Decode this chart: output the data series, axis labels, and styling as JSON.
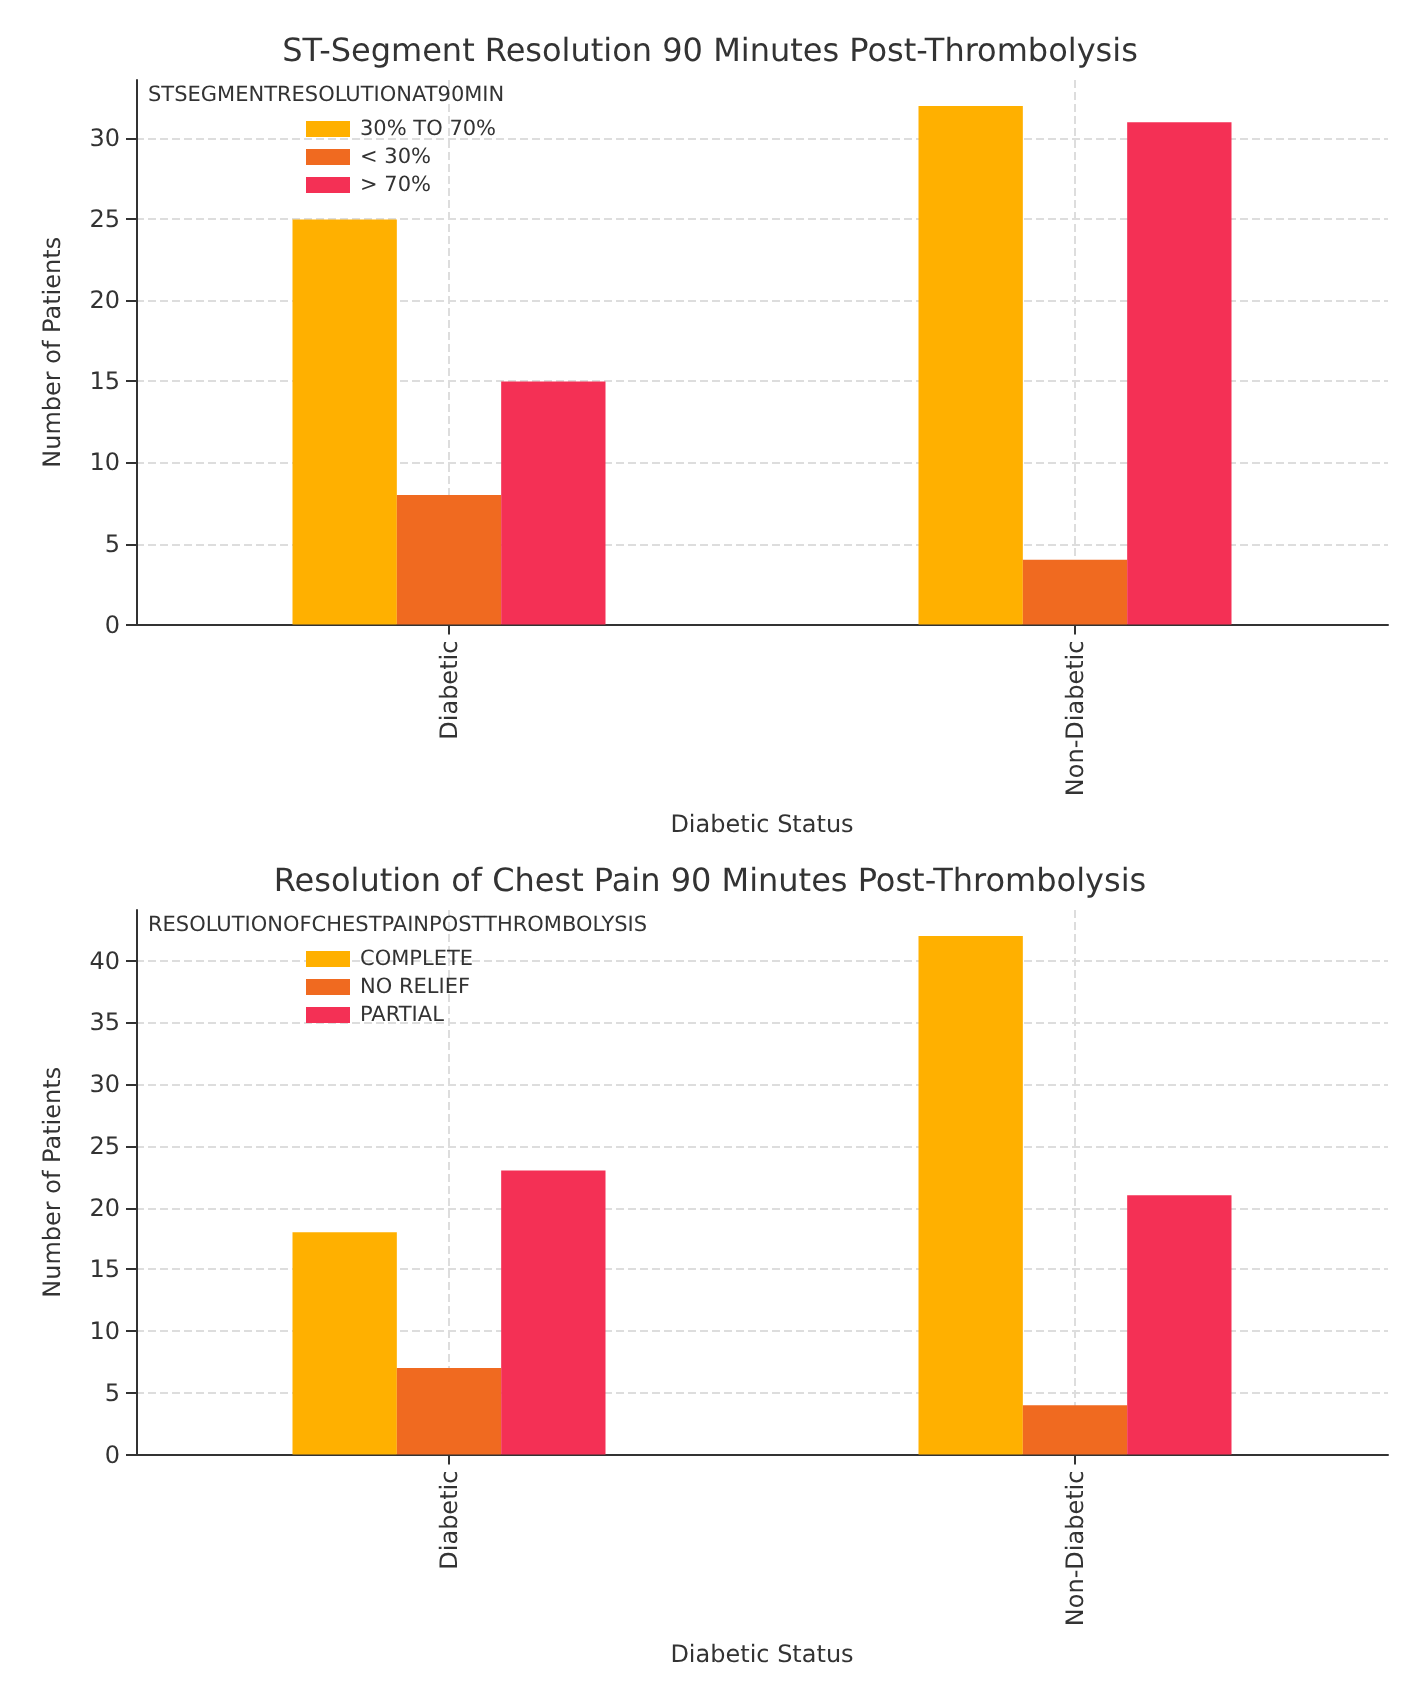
{
  "chart_data": [
    {
      "type": "bar",
      "title": "ST-Segment Resolution 90 Minutes Post-Thrombolysis",
      "xlabel": "Diabetic Status",
      "ylabel": "Number of Patients",
      "legend_title": "STSEGMENTRESOLUTIONAT90MIN",
      "categories": [
        "Diabetic",
        "Non-Diabetic"
      ],
      "series": [
        {
          "name": "30% TO 70%",
          "color": "#ffb000",
          "values": [
            25,
            32
          ]
        },
        {
          "name": "< 30%",
          "color": "#f06a20",
          "values": [
            8,
            4
          ]
        },
        {
          "name": "> 70%",
          "color": "#f43055",
          "values": [
            15,
            31
          ]
        }
      ],
      "ylim": [
        0,
        33.6
      ],
      "yticks": [
        0,
        5,
        10,
        15,
        20,
        25,
        30
      ],
      "grid": true,
      "legend": "top left"
    },
    {
      "type": "bar",
      "title": "Resolution of Chest Pain 90 Minutes Post-Thrombolysis",
      "xlabel": "Diabetic Status",
      "ylabel": "Number of Patients",
      "legend_title": "RESOLUTIONOFCHESTPAINPOSTTHROMBOLYSIS",
      "categories": [
        "Diabetic",
        "Non-Diabetic"
      ],
      "series": [
        {
          "name": "COMPLETE",
          "color": "#ffb000",
          "values": [
            18,
            42
          ]
        },
        {
          "name": "NO RELIEF",
          "color": "#f06a20",
          "values": [
            7,
            4
          ]
        },
        {
          "name": "PARTIAL",
          "color": "#f43055",
          "values": [
            23,
            21
          ]
        }
      ],
      "ylim": [
        0,
        44.1
      ],
      "yticks": [
        0,
        5,
        10,
        15,
        20,
        25,
        30,
        35,
        40
      ],
      "grid": true,
      "legend": "top left"
    }
  ]
}
